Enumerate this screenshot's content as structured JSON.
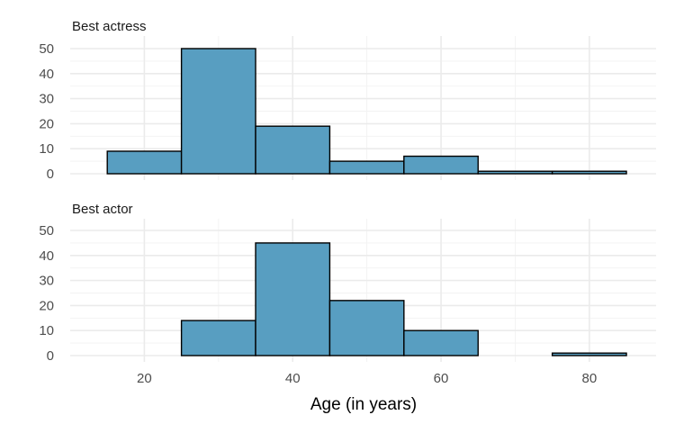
{
  "chart_data": {
    "type": "bar",
    "subtype": "faceted-histogram",
    "xlabel": "Age (in years)",
    "ylabel": "",
    "bar_color": "#589ec1",
    "outline_color": "#000000",
    "grid": true,
    "xlim": [
      10,
      89
    ],
    "x_ticks": [
      20,
      40,
      60,
      80
    ],
    "y_ticks": [
      0,
      10,
      20,
      30,
      40,
      50
    ],
    "ylim": [
      0,
      52
    ],
    "bins": [
      [
        15,
        25
      ],
      [
        25,
        35
      ],
      [
        35,
        45
      ],
      [
        45,
        55
      ],
      [
        55,
        65
      ],
      [
        65,
        75
      ],
      [
        75,
        85
      ]
    ],
    "facets": [
      {
        "title": "Best actress",
        "values": [
          9,
          50,
          19,
          5,
          7,
          1,
          1
        ]
      },
      {
        "title": "Best actor",
        "values": [
          0,
          14,
          45,
          22,
          10,
          0,
          1
        ]
      }
    ]
  }
}
